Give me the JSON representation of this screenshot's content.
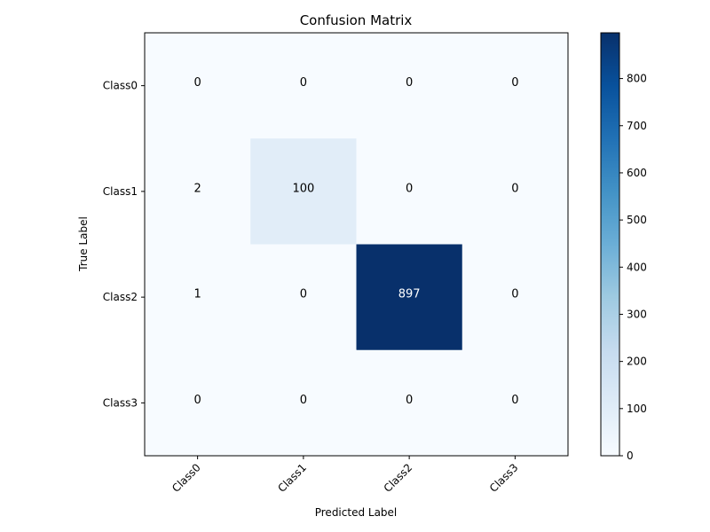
{
  "chart_data": {
    "type": "heatmap",
    "title": "Confusion Matrix",
    "xlabel": "Predicted Label",
    "ylabel": "True Label",
    "x_categories": [
      "Class0",
      "Class1",
      "Class2",
      "Class3"
    ],
    "y_categories": [
      "Class0",
      "Class1",
      "Class2",
      "Class3"
    ],
    "values": [
      [
        0,
        0,
        0,
        0
      ],
      [
        2,
        100,
        0,
        0
      ],
      [
        1,
        0,
        897,
        0
      ],
      [
        0,
        0,
        0,
        0
      ]
    ],
    "colormap": "Blues",
    "color_range": [
      0,
      897
    ],
    "colorbar_ticks": [
      0,
      100,
      200,
      300,
      400,
      500,
      600,
      700,
      800
    ],
    "colors": {
      "low": "#f7fbff",
      "high": "#08306b",
      "text_dark": "#000000",
      "text_light": "#ffffff"
    },
    "grid": false,
    "colorbar_position": "right"
  }
}
